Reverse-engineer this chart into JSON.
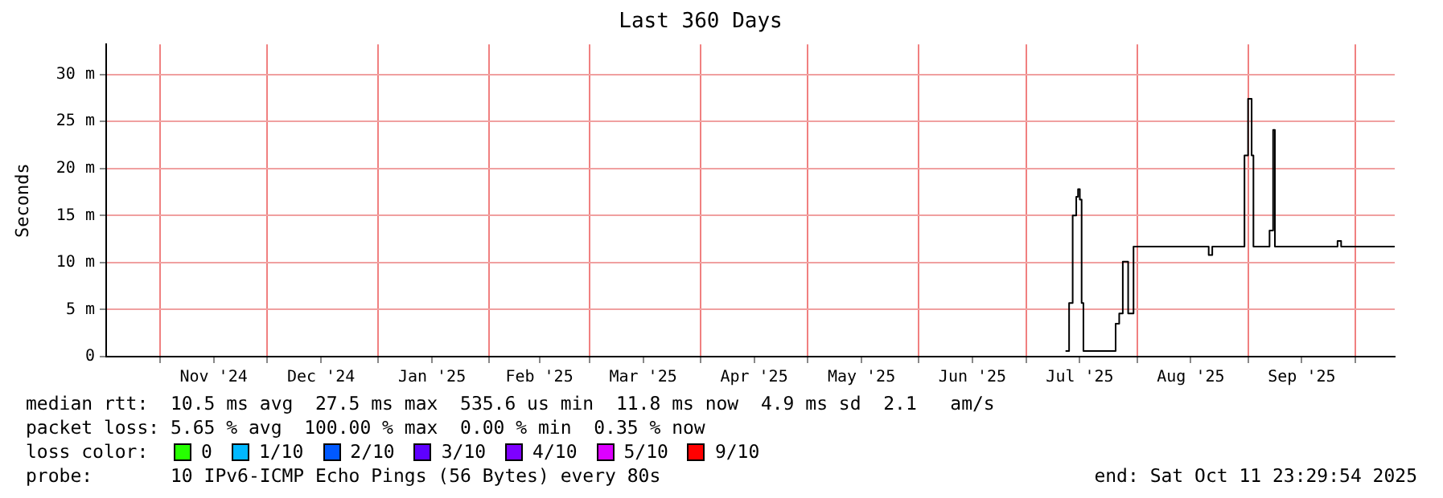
{
  "chart_data": {
    "type": "step",
    "title": "Last 360 Days",
    "ylabel": "Seconds",
    "x": [
      "2025-07-12",
      "2025-07-13",
      "2025-07-14",
      "2025-07-15",
      "2025-07-15T12:00",
      "2025-07-16",
      "2025-07-16T12:00",
      "2025-07-17",
      "2025-07-26",
      "2025-07-27",
      "2025-07-28",
      "2025-07-29T12:00",
      "2025-07-31",
      "2025-08-21",
      "2025-08-22",
      "2025-08-31",
      "2025-09-01",
      "2025-09-02",
      "2025-09-02T12:00",
      "2025-09-07",
      "2025-09-08",
      "2025-09-08T12:00",
      "2025-09-26",
      "2025-09-27",
      "2025-10-11T23:00"
    ],
    "series": [
      {
        "color": "#000000",
        "values": [
          0.6,
          5.7,
          15,
          17,
          17.8,
          16.7,
          5.7,
          0.6,
          3.5,
          4.6,
          10.1,
          4.6,
          11.7,
          10.8,
          11.7,
          21.4,
          27.4,
          21.4,
          11.7,
          13.4,
          24.1,
          11.7,
          12.3,
          11.7,
          11.7
        ]
      }
    ],
    "xlim": [
      "2024-10-16T23:29",
      "2025-10-11T23:29"
    ],
    "xticks": [
      {
        "value": "2024-11-01",
        "label": null
      },
      {
        "value": "2024-11-16",
        "label": "Nov '24"
      },
      {
        "value": "2024-12-01",
        "label": null
      },
      {
        "value": "2024-12-16",
        "label": "Dec '24"
      },
      {
        "value": "2025-01-01",
        "label": null
      },
      {
        "value": "2025-01-16",
        "label": "Jan '25"
      },
      {
        "value": "2025-02-01",
        "label": null
      },
      {
        "value": "2025-02-15",
        "label": "Feb '25"
      },
      {
        "value": "2025-03-01",
        "label": null
      },
      {
        "value": "2025-03-16",
        "label": "Mar '25"
      },
      {
        "value": "2025-04-01",
        "label": null
      },
      {
        "value": "2025-04-16",
        "label": "Apr '25"
      },
      {
        "value": "2025-05-01",
        "label": null
      },
      {
        "value": "2025-05-16",
        "label": "May '25"
      },
      {
        "value": "2025-06-01",
        "label": null
      },
      {
        "value": "2025-06-16",
        "label": "Jun '25"
      },
      {
        "value": "2025-07-01",
        "label": null
      },
      {
        "value": "2025-07-16",
        "label": "Jul '25"
      },
      {
        "value": "2025-08-01",
        "label": null
      },
      {
        "value": "2025-08-16",
        "label": "Aug '25"
      },
      {
        "value": "2025-09-01",
        "label": null
      },
      {
        "value": "2025-09-16",
        "label": "Sep '25"
      },
      {
        "value": "2025-10-01",
        "label": null
      }
    ],
    "ylim": [
      0,
      33.2
    ],
    "yticks": [
      {
        "value": 0,
        "label": "0"
      },
      {
        "value": 5,
        "label": "5 m"
      },
      {
        "value": 10,
        "label": "10 m"
      },
      {
        "value": 15,
        "label": "15 m"
      },
      {
        "value": 20,
        "label": "20 m"
      },
      {
        "value": 25,
        "label": "25 m"
      },
      {
        "value": 30,
        "label": "30 m"
      }
    ],
    "grid": true,
    "legend": false,
    "marker": "none",
    "line_style": "solid",
    "annotations": [
      "median rtt:  10.5 ms avg  27.5 ms max  535.6 us min  11.8 ms now  4.9 ms sd  2.1   am/s",
      "packet loss: 5.65 % avg  100.00 % max  0.00 % min  0.35 % now",
      "loss color:",
      "0",
      "1/10",
      "2/10",
      "3/10",
      "4/10",
      "5/10",
      "9/10",
      "probe:       10 IPv6-ICMP Echo Pings (56 Bytes) every 80s",
      "end: Sat Oct 11 23:29:54 2025"
    ]
  }
}
